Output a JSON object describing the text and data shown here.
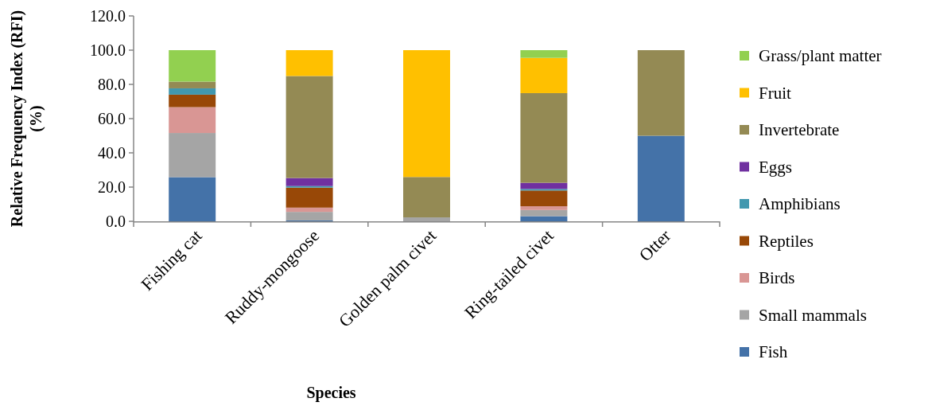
{
  "chart_data": {
    "type": "bar",
    "stacked": true,
    "xlabel": "Species",
    "ylabel": "Relative Frequency Index (RFI) (%)",
    "categories": [
      "Fishing cat",
      "Ruddy-mongoose",
      "Golden palm civet",
      "Ring-tailed civet",
      "Otter"
    ],
    "series": [
      {
        "name": "Fish",
        "color": "#4472a8",
        "values": [
          25.8,
          0.5,
          0,
          3.0,
          50
        ]
      },
      {
        "name": "Small mammals",
        "color": "#a5a5a5",
        "values": [
          25.8,
          5.0,
          2.3,
          3.6,
          0
        ]
      },
      {
        "name": "Birds",
        "color": "#d99694",
        "values": [
          15.1,
          2.5,
          0,
          2.2,
          0
        ]
      },
      {
        "name": "Reptiles",
        "color": "#984807",
        "values": [
          7.3,
          11.7,
          0,
          9.2,
          0
        ]
      },
      {
        "name": "Amphibians",
        "color": "#4198af",
        "values": [
          3.7,
          0.9,
          0,
          0.9,
          0
        ]
      },
      {
        "name": "Eggs",
        "color": "#7030a0",
        "values": [
          0,
          4.7,
          0,
          3.6,
          0
        ]
      },
      {
        "name": "Invertebrate",
        "color": "#948a54",
        "values": [
          3.9,
          59.6,
          23.6,
          52.4,
          50
        ]
      },
      {
        "name": "Fruit",
        "color": "#ffc000",
        "values": [
          0,
          15.1,
          74.1,
          20.6,
          0
        ]
      },
      {
        "name": "Grass/plant matter",
        "color": "#92d050",
        "values": [
          18.4,
          0,
          0,
          4.5,
          0
        ]
      }
    ],
    "ylim": [
      0,
      120
    ],
    "yticks": [
      {
        "value": 0,
        "label": "0.0"
      },
      {
        "value": 20,
        "label": "20.0"
      },
      {
        "value": 40,
        "label": "40.0"
      },
      {
        "value": 60,
        "label": "60.0"
      },
      {
        "value": 80,
        "label": "80.0"
      },
      {
        "value": 100,
        "label": "100.0"
      },
      {
        "value": 120,
        "label": "120.0"
      }
    ],
    "legend": "right"
  }
}
